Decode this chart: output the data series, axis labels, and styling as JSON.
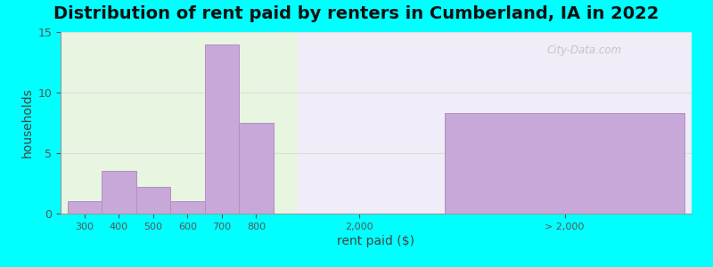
{
  "title": "Distribution of rent paid by renters in Cumberland, IA in 2022",
  "xlabel": "rent paid ($)",
  "ylabel": "households",
  "background_outer": "#00FFFF",
  "bar_color": "#c8a8d8",
  "bar_edge_color": "#b090c0",
  "ylim": [
    0,
    15
  ],
  "yticks": [
    0,
    5,
    10,
    15
  ],
  "left_bar_labels": [
    "300",
    "400",
    "500",
    "600",
    "700",
    "800"
  ],
  "left_bar_heights": [
    1,
    3.5,
    2.2,
    1,
    14,
    7.5
  ],
  "right_bar_height": 8.3,
  "mid_tick_label": "2,000",
  "right_tick_label": "> 2,000",
  "watermark": "City-Data.com",
  "title_fontsize": 14,
  "axis_label_fontsize": 10,
  "tick_fontsize": 9,
  "grid_color": "#dddddd",
  "left_bg_color_top": "#e0f0d0",
  "left_bg_color_bottom": "#f5fff0",
  "right_bg_color": "#f5f0ff"
}
